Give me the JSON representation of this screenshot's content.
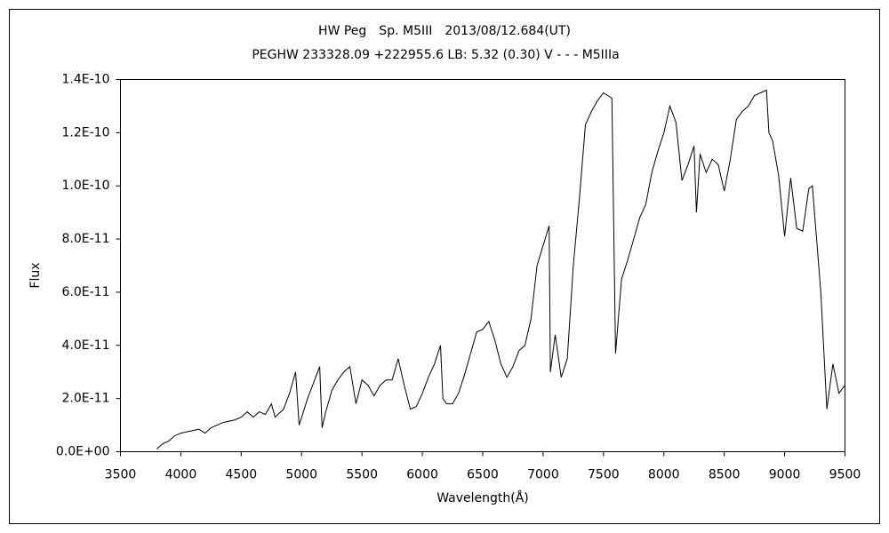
{
  "chart_data": {
    "type": "line",
    "title": "HW Peg　Sp. M5III　2013/08/12.684(UT)",
    "subtitle": "PEGHW 233328.09 +222955.6 LB: 5.32 (0.30) V - - - M5IIIa",
    "x_label": "Wavelength(Å)",
    "y_label": "Flux",
    "xlim": [
      3500,
      9500
    ],
    "ylim": [
      0,
      1.4e-10
    ],
    "xticks": [
      3500,
      4000,
      4500,
      5000,
      5500,
      6000,
      6500,
      7000,
      7500,
      8000,
      8500,
      9000,
      9500
    ],
    "yticks": [
      {
        "value": 0,
        "label": "0.0E+00"
      },
      {
        "value": 2e-11,
        "label": "2.0E-11"
      },
      {
        "value": 4e-11,
        "label": "4.0E-11"
      },
      {
        "value": 6e-11,
        "label": "6.0E-11"
      },
      {
        "value": 8e-11,
        "label": "8.0E-11"
      },
      {
        "value": 1e-10,
        "label": "1.0E-10"
      },
      {
        "value": 1.2e-10,
        "label": "1.2E-10"
      },
      {
        "value": 1.4e-10,
        "label": "1.4E-10"
      }
    ],
    "grid": false,
    "color": "#000000",
    "x": [
      3800,
      3850,
      3900,
      3950,
      4000,
      4050,
      4100,
      4150,
      4200,
      4250,
      4300,
      4350,
      4400,
      4450,
      4500,
      4550,
      4600,
      4650,
      4700,
      4750,
      4780,
      4850,
      4900,
      4950,
      4980,
      5050,
      5100,
      5150,
      5170,
      5200,
      5250,
      5300,
      5350,
      5400,
      5450,
      5500,
      5550,
      5600,
      5650,
      5700,
      5750,
      5800,
      5850,
      5900,
      5950,
      6000,
      6050,
      6100,
      6150,
      6170,
      6200,
      6250,
      6300,
      6350,
      6400,
      6450,
      6500,
      6550,
      6600,
      6650,
      6700,
      6750,
      6800,
      6850,
      6900,
      6950,
      7050,
      7060,
      7100,
      7150,
      7200,
      7250,
      7300,
      7350,
      7400,
      7450,
      7500,
      7570,
      7600,
      7650,
      7700,
      7750,
      7800,
      7850,
      7900,
      7950,
      8000,
      8050,
      8100,
      8150,
      8200,
      8250,
      8270,
      8300,
      8350,
      8400,
      8450,
      8500,
      8550,
      8600,
      8650,
      8700,
      8750,
      8800,
      8850,
      8870,
      8900,
      8950,
      9000,
      9050,
      9100,
      9150,
      9200,
      9230,
      9300,
      9350,
      9400,
      9450,
      9500
    ],
    "values": [
      1e-12,
      3e-12,
      4e-12,
      6e-12,
      7e-12,
      7.5e-12,
      8e-12,
      8.5e-12,
      7e-12,
      9e-12,
      1e-11,
      1.1e-11,
      1.15e-11,
      1.2e-11,
      1.3e-11,
      1.5e-11,
      1.3e-11,
      1.5e-11,
      1.4e-11,
      1.8e-11,
      1.3e-11,
      1.6e-11,
      2.2e-11,
      3e-11,
      1e-11,
      2e-11,
      2.6e-11,
      3.2e-11,
      9e-12,
      1.5e-11,
      2.3e-11,
      2.7e-11,
      3e-11,
      3.2e-11,
      1.8e-11,
      2.7e-11,
      2.5e-11,
      2.1e-11,
      2.5e-11,
      2.7e-11,
      2.7e-11,
      3.5e-11,
      2.5e-11,
      1.6e-11,
      1.7e-11,
      2.2e-11,
      2.8e-11,
      3.3e-11,
      4e-11,
      2e-11,
      1.8e-11,
      1.8e-11,
      2.2e-11,
      2.9e-11,
      3.7e-11,
      4.5e-11,
      4.6e-11,
      4.9e-11,
      4.2e-11,
      3.3e-11,
      2.8e-11,
      3.2e-11,
      3.8e-11,
      4e-11,
      5e-11,
      7e-11,
      8.5e-11,
      3e-11,
      4.4e-11,
      2.8e-11,
      3.5e-11,
      7e-11,
      9.5e-11,
      1.23e-10,
      1.28e-10,
      1.32e-10,
      1.35e-10,
      1.33e-10,
      3.7e-11,
      6.5e-11,
      7.2e-11,
      8e-11,
      8.8e-11,
      9.3e-11,
      1.05e-10,
      1.13e-10,
      1.2e-10,
      1.3e-10,
      1.24e-10,
      1.02e-10,
      1.08e-10,
      1.15e-10,
      9e-11,
      1.12e-10,
      1.05e-10,
      1.1e-10,
      1.08e-10,
      9.8e-11,
      1.1e-10,
      1.25e-10,
      1.28e-10,
      1.3e-10,
      1.34e-10,
      1.35e-10,
      1.36e-10,
      1.2e-10,
      1.17e-10,
      1.04e-10,
      8.1e-11,
      1.03e-10,
      8.4e-11,
      8.3e-11,
      9.9e-11,
      1e-10,
      6e-11,
      1.6e-11,
      3.3e-11,
      2.2e-11,
      2.5e-11
    ]
  }
}
